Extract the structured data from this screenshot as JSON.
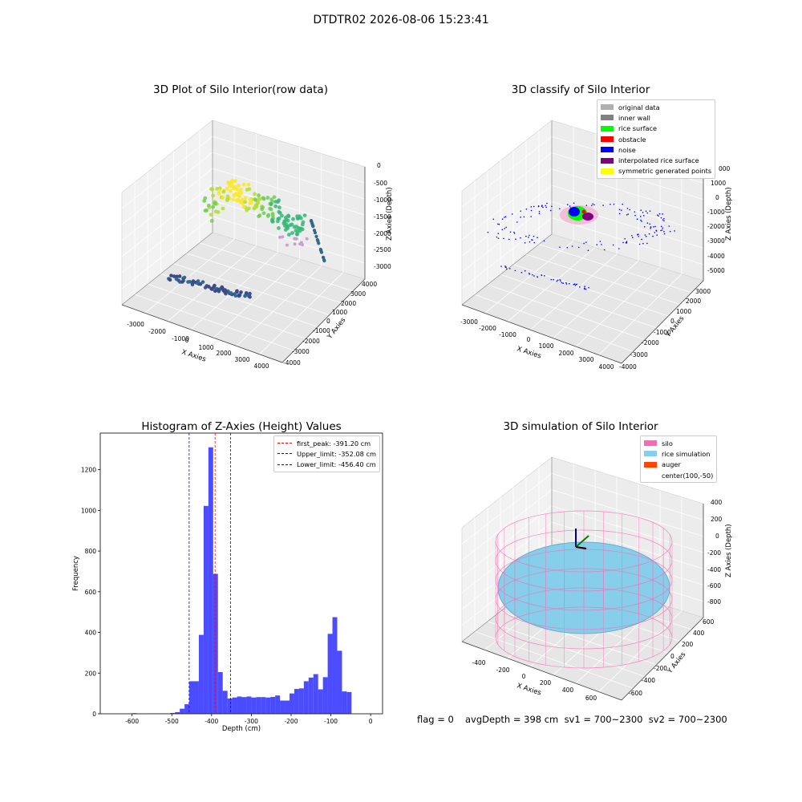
{
  "suptitle": "DTDTR02 2026-08-06 15:23:41",
  "panels": {
    "raw": {
      "title": "3D Plot of Silo Interior(row data)",
      "xlabel": "X Axies",
      "ylabel": "Y Axies",
      "zlabel": "Z Axies (Depth)",
      "xticks": [
        "-3000",
        "-2000",
        "-1000",
        "0",
        "1000",
        "2000",
        "3000",
        "4000"
      ],
      "yticks": [
        "4000",
        "3000",
        "2000",
        "1000",
        "0",
        "-1000",
        "-2000",
        "-3000",
        "-4000"
      ],
      "zticks": [
        "0",
        "-500",
        "-1000",
        "-1500",
        "-2000",
        "-2500",
        "-3000"
      ]
    },
    "classify": {
      "title": "3D classify of Silo Interior",
      "xlabel": "X Axies",
      "ylabel": "Y Axies",
      "zlabel": "Z Axies (Depth)",
      "xticks": [
        "-3000",
        "-2000",
        "-1000",
        "0",
        "1000",
        "2000",
        "3000",
        "4000"
      ],
      "yticks": [
        "3000",
        "2000",
        "1000",
        "0",
        "-1000",
        "-2000",
        "-3000",
        "-4000"
      ],
      "zticks": [
        "2000",
        "1000",
        "0",
        "-1000",
        "-2000",
        "-3000",
        "-4000",
        "-5000"
      ],
      "ztick_partial": "000",
      "legend": [
        {
          "label": "original data",
          "color": "#b0b0b0"
        },
        {
          "label": "inner wall",
          "color": "#808080"
        },
        {
          "label": "rice surface",
          "color": "#00ff00"
        },
        {
          "label": "obstacle",
          "color": "#ff0000"
        },
        {
          "label": "noise",
          "color": "#0000ff"
        },
        {
          "label": "interpolated rice surface",
          "color": "#800080"
        },
        {
          "label": "symmetric generated points",
          "color": "#ffff00"
        }
      ]
    },
    "histogram": {
      "title": "Histogram of Z-Axies (Height) Values",
      "xlabel": "Depth (cm)",
      "ylabel": "Frequency",
      "legend": [
        {
          "label": "first_peak: -391.20 cm",
          "color": "#ff0000"
        },
        {
          "label": "Upper_limit: -352.08 cm",
          "color": "#0000ff"
        },
        {
          "label": "Lower_limit: -456.40 cm",
          "color": "#0000ff"
        }
      ]
    },
    "simulation": {
      "title": "3D simulation of Silo Interior",
      "xlabel": "X Axies",
      "ylabel": "Y Axies",
      "zlabel": "Z Axies (Depth)",
      "xticks": [
        "-400",
        "-200",
        "0",
        "200",
        "400",
        "600"
      ],
      "yticks": [
        "600",
        "400",
        "200",
        "0",
        "-200",
        "-400",
        "-600"
      ],
      "zticks": [
        "400",
        "200",
        "0",
        "-200",
        "-400",
        "-600",
        "-800"
      ],
      "legend": [
        {
          "label": "silo",
          "color": "#ff69b4"
        },
        {
          "label": "rice simulation",
          "color": "#87ceeb"
        },
        {
          "label": "auger",
          "color": "#ff4500"
        },
        {
          "label": "center(100,-50)",
          "color": ""
        }
      ]
    }
  },
  "footer": {
    "flag": "flag = 0",
    "stats": "avgDepth = 398 cm  sv1 = 700~2300  sv2 = 700~2300"
  },
  "chart_data": [
    {
      "type": "bar",
      "title": "Histogram of Z-Axies (Height) Values",
      "xlabel": "Depth (cm)",
      "ylabel": "Frequency",
      "xlim": [
        -680,
        30
      ],
      "ylim": [
        0,
        1380
      ],
      "xticks": [
        -600,
        -500,
        -400,
        -300,
        -200,
        -100,
        0
      ],
      "yticks": [
        0,
        200,
        400,
        600,
        800,
        1000,
        1200
      ],
      "bin_width": 12,
      "bins": [
        {
          "x": -600,
          "y": 3
        },
        {
          "x": -588,
          "y": 1
        },
        {
          "x": -564,
          "y": 2
        },
        {
          "x": -552,
          "y": 2
        },
        {
          "x": -540,
          "y": 2
        },
        {
          "x": -528,
          "y": 2
        },
        {
          "x": -516,
          "y": 2
        },
        {
          "x": -504,
          "y": 4
        },
        {
          "x": -492,
          "y": 8
        },
        {
          "x": -480,
          "y": 25
        },
        {
          "x": -468,
          "y": 47
        },
        {
          "x": -456,
          "y": 160
        },
        {
          "x": -444,
          "y": 160
        },
        {
          "x": -432,
          "y": 388
        },
        {
          "x": -420,
          "y": 1022
        },
        {
          "x": -408,
          "y": 1310
        },
        {
          "x": -396,
          "y": 688
        },
        {
          "x": -384,
          "y": 205
        },
        {
          "x": -372,
          "y": 113
        },
        {
          "x": -360,
          "y": 75
        },
        {
          "x": -348,
          "y": 80
        },
        {
          "x": -336,
          "y": 85
        },
        {
          "x": -324,
          "y": 82
        },
        {
          "x": -312,
          "y": 85
        },
        {
          "x": -300,
          "y": 80
        },
        {
          "x": -288,
          "y": 82
        },
        {
          "x": -276,
          "y": 82
        },
        {
          "x": -264,
          "y": 80
        },
        {
          "x": -252,
          "y": 83
        },
        {
          "x": -240,
          "y": 90
        },
        {
          "x": -228,
          "y": 65
        },
        {
          "x": -216,
          "y": 65
        },
        {
          "x": -204,
          "y": 100
        },
        {
          "x": -192,
          "y": 122
        },
        {
          "x": -180,
          "y": 125
        },
        {
          "x": -168,
          "y": 160
        },
        {
          "x": -156,
          "y": 178
        },
        {
          "x": -144,
          "y": 195
        },
        {
          "x": -132,
          "y": 120
        },
        {
          "x": -120,
          "y": 180
        },
        {
          "x": -108,
          "y": 393
        },
        {
          "x": -96,
          "y": 475
        },
        {
          "x": -84,
          "y": 310
        },
        {
          "x": -72,
          "y": 110
        },
        {
          "x": -60,
          "y": 107
        }
      ],
      "vlines": [
        {
          "name": "first_peak",
          "x": -391.2,
          "color": "#ff0000"
        },
        {
          "name": "Upper_limit",
          "x": -352.08,
          "color": "#0000ff"
        },
        {
          "name": "Lower_limit",
          "x": -456.4,
          "color": "#0000ff"
        }
      ],
      "bar_color": "#0000ff"
    }
  ]
}
